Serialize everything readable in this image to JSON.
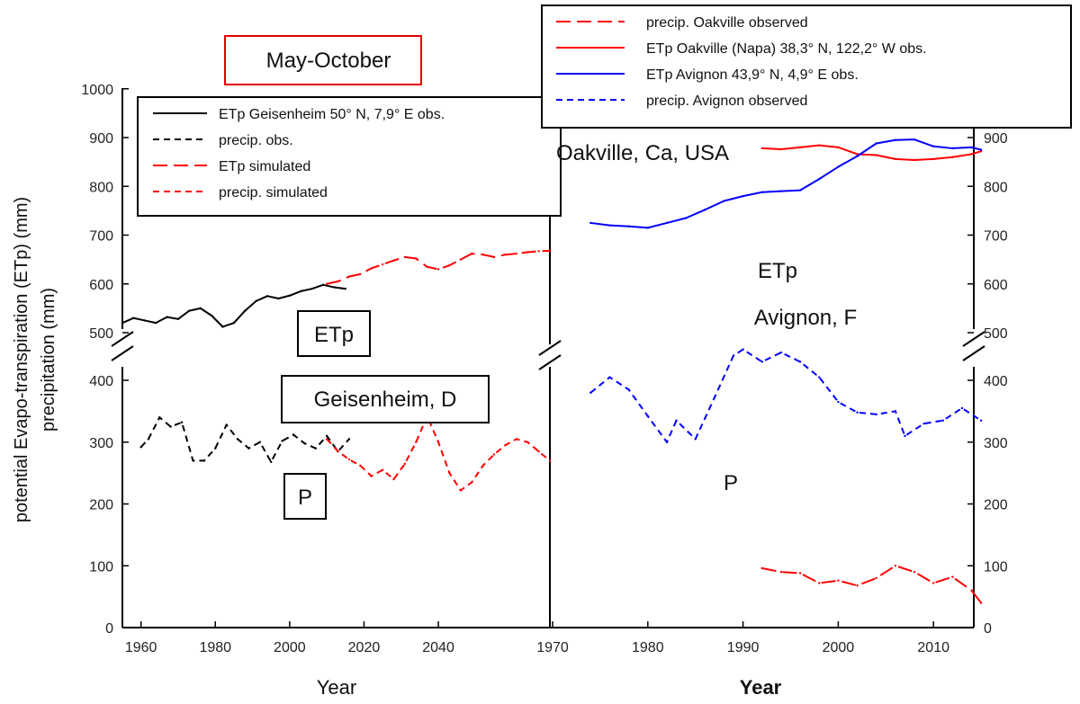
{
  "chart_data": [
    {
      "type": "line",
      "title": "May-October",
      "xlabel": "Year",
      "ylabel_line1": "potential Evapo-transpiration (ETp) (mm)",
      "ylabel_line2": "precipitation (mm)",
      "xlim": [
        1955,
        2070
      ],
      "xticks": [
        1960,
        1980,
        2000,
        2020,
        2040
      ],
      "ylim": [
        0,
        1000
      ],
      "yticks": [
        0,
        100,
        200,
        300,
        400,
        500,
        600,
        700,
        800,
        900,
        1000
      ],
      "axis_break": "between 400 and 500",
      "legend": {
        "position": "top-left",
        "entries": [
          {
            "label": "ETp Geisenheim 50° N, 7,9° E obs.",
            "color": "#000000",
            "style": "solid"
          },
          {
            "label": "precip. obs.",
            "color": "#000000",
            "style": "dashed"
          },
          {
            "label": "ETp simulated",
            "color": "#ff0000",
            "style": "longdash"
          },
          {
            "label": "precip. simulated",
            "color": "#ff0000",
            "style": "dashed"
          }
        ]
      },
      "annotations": [
        "ETp",
        "Geisenheim, D",
        "P"
      ],
      "series": [
        {
          "name": "ETp Geisenheim 50° N, 7,9° E obs.",
          "color": "#000000",
          "style": "solid",
          "x": [
            1955,
            1958,
            1961,
            1964,
            1967,
            1970,
            1973,
            1976,
            1979,
            1982,
            1985,
            1988,
            1991,
            1994,
            1997,
            2000,
            2003,
            2006,
            2009,
            2012,
            2015
          ],
          "y": [
            520,
            530,
            525,
            520,
            532,
            528,
            545,
            550,
            535,
            512,
            520,
            545,
            565,
            575,
            570,
            576,
            585,
            590,
            598,
            593,
            590
          ]
        },
        {
          "name": "precip. obs.",
          "color": "#000000",
          "style": "dashed",
          "x": [
            1960,
            1962,
            1965,
            1968,
            1971,
            1974,
            1977,
            1980,
            1983,
            1986,
            1989,
            1992,
            1995,
            1998,
            2001,
            2004,
            2007,
            2010,
            2013,
            2016
          ],
          "y": [
            292,
            305,
            340,
            325,
            332,
            270,
            270,
            290,
            328,
            305,
            290,
            300,
            268,
            302,
            312,
            298,
            290,
            310,
            285,
            305
          ]
        },
        {
          "name": "ETp simulated",
          "color": "#ff0000",
          "style": "longdash",
          "x": [
            2010,
            2013,
            2016,
            2019,
            2022,
            2025,
            2028,
            2031,
            2034,
            2037,
            2040,
            2043,
            2046,
            2049,
            2052,
            2055,
            2058,
            2061,
            2064,
            2067,
            2070
          ],
          "y": [
            600,
            605,
            615,
            620,
            632,
            640,
            648,
            655,
            652,
            635,
            630,
            638,
            650,
            662,
            660,
            655,
            660,
            662,
            665,
            667,
            668
          ]
        },
        {
          "name": "precip. simulated",
          "color": "#ff0000",
          "style": "dashed",
          "x": [
            2010,
            2013,
            2016,
            2019,
            2022,
            2025,
            2028,
            2031,
            2034,
            2037,
            2040,
            2043,
            2046,
            2049,
            2052,
            2055,
            2058,
            2061,
            2064,
            2067,
            2070
          ],
          "y": [
            305,
            285,
            272,
            262,
            245,
            255,
            240,
            265,
            300,
            342,
            300,
            250,
            222,
            235,
            262,
            280,
            295,
            305,
            300,
            285,
            270
          ]
        }
      ]
    },
    {
      "type": "line",
      "xlabel": "Year",
      "xlim": [
        1970,
        2015
      ],
      "xticks": [
        1970,
        1980,
        1990,
        2000,
        2010
      ],
      "ylim": [
        0,
        1000
      ],
      "yticks": [
        0,
        100,
        200,
        300,
        400,
        500,
        600,
        700,
        800,
        900
      ],
      "axis_break": "between 400 and 500",
      "legend": {
        "position": "top-right",
        "entries": [
          {
            "label": "precip. Oakville observed",
            "color": "#ff0000",
            "style": "longdash"
          },
          {
            "label": "ETp Oakville (Napa) 38,3° N, 122,2° W obs.",
            "color": "#ff0000",
            "style": "solid"
          },
          {
            "label": "ETp Avignon 43,9° N, 4,9° E obs.",
            "color": "#0000ff",
            "style": "solid"
          },
          {
            "label": "precip. Avignon observed",
            "color": "#0000ff",
            "style": "dashed"
          }
        ]
      },
      "annotations": [
        "Oakville, Ca, USA",
        "ETp",
        "Avignon, F",
        "P"
      ],
      "series": [
        {
          "name": "precip. Oakville observed",
          "color": "#ff0000",
          "style": "longdash",
          "x": [
            1992,
            1994,
            1996,
            1998,
            2000,
            2002,
            2004,
            2006,
            2008,
            2010,
            2012,
            2014,
            2015
          ],
          "y": [
            96,
            90,
            88,
            72,
            76,
            68,
            80,
            100,
            90,
            72,
            82,
            60,
            40
          ]
        },
        {
          "name": "ETp Oakville (Napa) 38,3° N, 122,2° W obs.",
          "color": "#ff0000",
          "style": "solid",
          "x": [
            1992,
            1994,
            1996,
            1998,
            2000,
            2002,
            2004,
            2006,
            2008,
            2010,
            2012,
            2014,
            2015
          ],
          "y": [
            878,
            876,
            880,
            884,
            880,
            866,
            864,
            856,
            854,
            856,
            860,
            866,
            872
          ]
        },
        {
          "name": "ETp Avignon 43,9° N, 4,9° E obs.",
          "color": "#0000ff",
          "style": "solid",
          "x": [
            1974,
            1976,
            1978,
            1980,
            1982,
            1984,
            1986,
            1988,
            1990,
            1992,
            1994,
            1996,
            1998,
            2000,
            2002,
            2004,
            2006,
            2008,
            2010,
            2012,
            2014,
            2015
          ],
          "y": [
            725,
            720,
            718,
            715,
            725,
            735,
            752,
            770,
            780,
            788,
            790,
            792,
            815,
            840,
            862,
            888,
            895,
            896,
            882,
            878,
            880,
            875
          ]
        },
        {
          "name": "precip. Avignon observed",
          "color": "#0000ff",
          "style": "dashed",
          "x": [
            1974,
            1976,
            1978,
            1980,
            1982,
            1983,
            1985,
            1987,
            1989,
            1990,
            1992,
            1994,
            1996,
            1998,
            2000,
            2002,
            2004,
            2006,
            2007,
            2009,
            2011,
            2013,
            2015
          ],
          "y": [
            380,
            405,
            385,
            342,
            300,
            335,
            305,
            372,
            440,
            450,
            430,
            445,
            430,
            405,
            365,
            348,
            345,
            350,
            310,
            330,
            335,
            355,
            335
          ]
        }
      ]
    }
  ]
}
